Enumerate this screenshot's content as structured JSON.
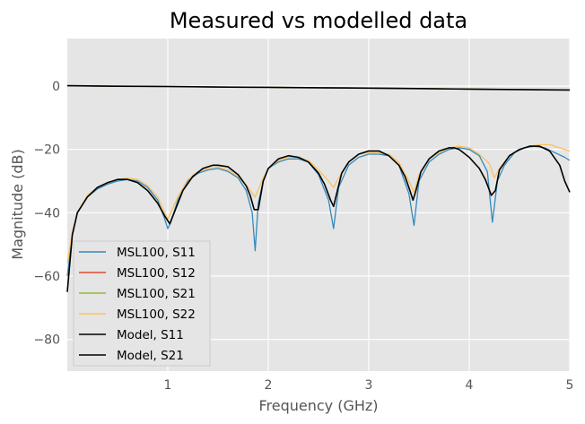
{
  "chart_data": {
    "type": "line",
    "title": "Measured vs modelled data",
    "xlabel": "Frequency (GHz)",
    "ylabel": "Magnitude (dB)",
    "xlim": [
      0,
      5
    ],
    "ylim": [
      -90,
      15
    ],
    "x_ticks": [
      1,
      2,
      3,
      4,
      5
    ],
    "x_tick_labels": [
      "1",
      "2",
      "3",
      "4",
      "5"
    ],
    "y_ticks": [
      0,
      -20,
      -40,
      -60,
      -80
    ],
    "y_tick_labels": [
      "0",
      "−20",
      "−40",
      "−60",
      "−80"
    ],
    "grid": true,
    "legend_position": "lower-left",
    "colors": {
      "plot_background": "#e5e5e5",
      "grid": "#ffffff",
      "MSL100, S11": "#348abd",
      "MSL100, S12": "#e24a33",
      "MSL100, S21": "#8eba42",
      "MSL100, S22": "#fbc15e",
      "Model, S11": "#000000",
      "Model, S21": "#000000"
    },
    "series": [
      {
        "name": "MSL100, S11",
        "x": [
          0.0,
          0.05,
          0.1,
          0.2,
          0.3,
          0.4,
          0.5,
          0.6,
          0.7,
          0.8,
          0.9,
          0.97,
          1.0,
          1.03,
          1.1,
          1.2,
          1.3,
          1.4,
          1.5,
          1.6,
          1.7,
          1.78,
          1.84,
          1.87,
          1.9,
          1.95,
          2.0,
          2.1,
          2.2,
          2.3,
          2.4,
          2.5,
          2.6,
          2.65,
          2.7,
          2.8,
          2.9,
          3.0,
          3.1,
          3.2,
          3.3,
          3.4,
          3.45,
          3.5,
          3.6,
          3.7,
          3.8,
          3.9,
          4.0,
          4.1,
          4.18,
          4.23,
          4.28,
          4.35,
          4.45,
          4.55,
          4.65,
          4.75,
          4.85,
          4.95,
          5.0
        ],
        "y": [
          -60,
          -47,
          -40,
          -35,
          -32.5,
          -31,
          -30,
          -29.5,
          -30,
          -32,
          -36,
          -42,
          -45,
          -43,
          -36,
          -30,
          -27.5,
          -26.5,
          -26,
          -27,
          -29,
          -33,
          -40,
          -52,
          -37,
          -30,
          -26,
          -24,
          -23,
          -23,
          -24,
          -28,
          -36,
          -45,
          -32,
          -25,
          -22.5,
          -21.5,
          -21.5,
          -22,
          -25,
          -34,
          -44,
          -30,
          -24,
          -21.5,
          -20,
          -19.5,
          -20,
          -22,
          -27,
          -43,
          -30,
          -25,
          -21,
          -19.5,
          -19,
          -19.5,
          -21,
          -22.5,
          -23.5
        ]
      },
      {
        "name": "MSL100, S12",
        "x": [
          0,
          0.5,
          1,
          1.5,
          2,
          2.5,
          3,
          3.5,
          4,
          4.5,
          5
        ],
        "y": [
          0.1,
          -0.05,
          -0.15,
          -0.3,
          -0.4,
          -0.55,
          -0.65,
          -0.8,
          -0.95,
          -1.1,
          -1.25
        ]
      },
      {
        "name": "MSL100, S21",
        "x": [
          0,
          0.5,
          1,
          1.5,
          2,
          2.5,
          3,
          3.5,
          4,
          4.5,
          5
        ],
        "y": [
          0.1,
          -0.05,
          -0.15,
          -0.3,
          -0.4,
          -0.55,
          -0.65,
          -0.8,
          -0.95,
          -1.1,
          -1.25
        ]
      },
      {
        "name": "MSL100, S22",
        "x": [
          0.0,
          0.05,
          0.1,
          0.2,
          0.3,
          0.4,
          0.5,
          0.6,
          0.7,
          0.8,
          0.9,
          0.97,
          1.0,
          1.03,
          1.1,
          1.2,
          1.3,
          1.4,
          1.5,
          1.6,
          1.7,
          1.8,
          1.87,
          1.95,
          2.0,
          2.1,
          2.2,
          2.3,
          2.4,
          2.5,
          2.6,
          2.65,
          2.7,
          2.8,
          2.9,
          3.0,
          3.1,
          3.2,
          3.3,
          3.4,
          3.45,
          3.5,
          3.6,
          3.7,
          3.8,
          3.9,
          4.0,
          4.1,
          4.2,
          4.25,
          4.3,
          4.4,
          4.5,
          4.6,
          4.7,
          4.8,
          4.9,
          5.0
        ],
        "y": [
          -56,
          -46,
          -40,
          -34.5,
          -32,
          -30.5,
          -29.5,
          -29,
          -29.5,
          -31.5,
          -35,
          -40,
          -42,
          -40,
          -35,
          -29.5,
          -27,
          -26,
          -25.5,
          -26.5,
          -28.5,
          -32,
          -35,
          -29,
          -26,
          -23.5,
          -22.5,
          -22.5,
          -23.5,
          -26.5,
          -30,
          -32,
          -29,
          -24,
          -21.5,
          -21,
          -21,
          -21.5,
          -24,
          -30,
          -33.5,
          -28,
          -23,
          -21,
          -19.5,
          -19,
          -19.5,
          -21.5,
          -24.5,
          -29,
          -26,
          -22,
          -20,
          -19,
          -18.5,
          -18.5,
          -19.5,
          -20.5
        ]
      },
      {
        "name": "Model, S11",
        "x": [
          0.0,
          0.05,
          0.1,
          0.2,
          0.3,
          0.4,
          0.5,
          0.6,
          0.7,
          0.8,
          0.9,
          0.97,
          1.02,
          1.07,
          1.15,
          1.25,
          1.35,
          1.45,
          1.5,
          1.6,
          1.7,
          1.78,
          1.82,
          1.86,
          1.9,
          1.95,
          2.0,
          2.1,
          2.2,
          2.3,
          2.4,
          2.5,
          2.56,
          2.62,
          2.65,
          2.68,
          2.73,
          2.8,
          2.9,
          3.0,
          3.1,
          3.2,
          3.3,
          3.36,
          3.41,
          3.44,
          3.47,
          3.52,
          3.6,
          3.7,
          3.8,
          3.85,
          3.9,
          4.0,
          4.1,
          4.16,
          4.22,
          4.26,
          4.3,
          4.4,
          4.5,
          4.6,
          4.7,
          4.8,
          4.9,
          4.95,
          5.0
        ],
        "y": [
          -65,
          -47,
          -40,
          -35,
          -32,
          -30.5,
          -29.5,
          -29.5,
          -30.5,
          -33,
          -37,
          -41,
          -43.5,
          -39.5,
          -33,
          -28.5,
          -26,
          -25,
          -25,
          -25.5,
          -28,
          -31.5,
          -34.5,
          -39,
          -39,
          -30,
          -26,
          -23,
          -22,
          -22.5,
          -24,
          -27.5,
          -31,
          -36,
          -38,
          -34,
          -27.5,
          -24,
          -21.5,
          -20.5,
          -20.5,
          -22,
          -25,
          -28.5,
          -33,
          -36,
          -33,
          -27,
          -23,
          -20.5,
          -19.5,
          -19.5,
          -20,
          -22.5,
          -26,
          -29.5,
          -34.5,
          -33,
          -26.5,
          -22,
          -20,
          -19,
          -19,
          -20.5,
          -25,
          -30,
          -33.5
        ]
      },
      {
        "name": "Model, S21",
        "x": [
          0,
          0.5,
          1,
          1.5,
          2,
          2.5,
          3,
          3.5,
          4,
          4.5,
          5
        ],
        "y": [
          0.1,
          -0.05,
          -0.15,
          -0.3,
          -0.4,
          -0.55,
          -0.65,
          -0.8,
          -0.95,
          -1.1,
          -1.25
        ]
      }
    ]
  }
}
